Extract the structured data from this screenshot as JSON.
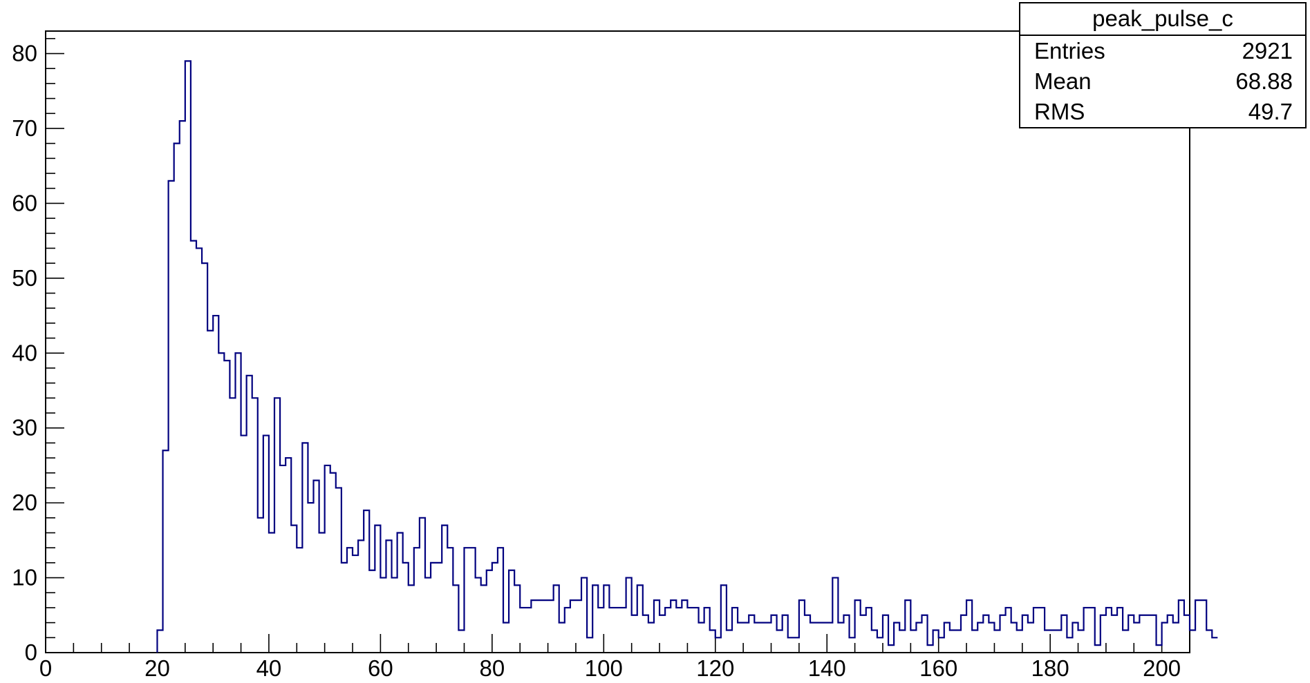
{
  "chart_data": {
    "type": "histogram",
    "title": "",
    "xlabel": "",
    "ylabel": "",
    "xlim": [
      0,
      205
    ],
    "ylim": [
      0,
      83
    ],
    "grid": false,
    "line_color": "#00007f",
    "bin_width": 1,
    "bin_start": 20,
    "values": [
      3,
      27,
      63,
      68,
      71,
      79,
      55,
      54,
      52,
      43,
      45,
      40,
      39,
      34,
      40,
      29,
      37,
      34,
      18,
      29,
      16,
      34,
      25,
      26,
      17,
      14,
      28,
      20,
      23,
      16,
      25,
      24,
      22,
      12,
      14,
      13,
      15,
      19,
      11,
      17,
      10,
      15,
      10,
      16,
      12,
      9,
      14,
      18,
      10,
      12,
      12,
      17,
      14,
      9,
      3,
      14,
      14,
      10,
      9,
      11,
      12,
      14,
      4,
      11,
      9,
      6,
      6,
      7,
      7,
      7,
      7,
      9,
      4,
      6,
      7,
      7,
      10,
      2,
      9,
      6,
      9,
      6,
      6,
      6,
      10,
      5,
      9,
      5,
      4,
      7,
      5,
      6,
      7,
      6,
      7,
      6,
      6,
      4,
      6,
      3,
      2,
      9,
      3,
      6,
      4,
      4,
      5,
      4,
      4,
      4,
      5,
      3,
      5,
      2,
      2,
      7,
      5,
      4,
      4,
      4,
      4,
      10,
      4,
      5,
      2,
      7,
      5,
      6,
      3,
      2,
      5,
      1,
      4,
      3,
      7,
      3,
      4,
      5,
      1,
      3,
      2,
      4,
      3,
      3,
      5,
      7,
      3,
      4,
      5,
      4,
      3,
      5,
      6,
      4,
      3,
      5,
      4,
      6,
      6,
      3,
      3,
      3,
      5,
      2,
      4,
      3,
      6,
      6,
      1,
      5,
      6,
      5,
      6,
      3,
      5,
      4,
      5,
      5,
      5,
      1,
      4,
      5,
      4,
      7,
      5,
      3,
      7,
      7,
      3,
      2
    ],
    "x_ticks": [
      0,
      20,
      40,
      60,
      80,
      100,
      120,
      140,
      160,
      180,
      200
    ],
    "x_tick_labels": [
      "0",
      "20",
      "40",
      "60",
      "80",
      "100",
      "120",
      "140",
      "160",
      "180",
      "200"
    ],
    "y_ticks": [
      0,
      10,
      20,
      30,
      40,
      50,
      60,
      70,
      80
    ],
    "y_tick_labels": [
      "0",
      "10",
      "20",
      "30",
      "40",
      "50",
      "60",
      "70",
      "80"
    ],
    "legend_position": "top-right",
    "stats_box": {
      "title": "peak_pulse_c",
      "rows": [
        {
          "label": "Entries",
          "value": "2921"
        },
        {
          "label": "Mean",
          "value": "68.88"
        },
        {
          "label": "RMS",
          "value": "49.7"
        }
      ]
    }
  }
}
